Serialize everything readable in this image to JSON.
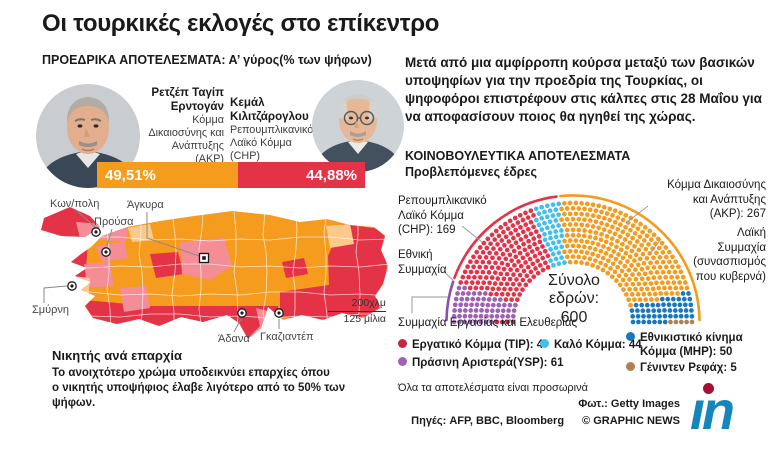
{
  "header": {
    "title": "Οι τουρκικές εκλογές στο επίκεντρο"
  },
  "presidential": {
    "heading": "ΠΡΟΕΔΡΙΚΑ ΑΠΟΤΕΛΕΣΜΑΤΑ: Α’ γύρος(% των ψήφων)",
    "candidates": [
      {
        "name": "Ρετζέπ Ταγίπ\nΕρντογάν",
        "party": "Κόμμα\nΔικαιοσύνης και\nΑνάπτυξης\n(ΑΚΡ)"
      },
      {
        "name": "Κεμάλ\nΚιλιτζάρογλου",
        "party": "Ρεπουμπλικανικό\nΛαϊκό Κόμμα\n(CHP)"
      }
    ]
  },
  "intro": "Μετά από μια αμφίρροπη κούρσα μεταξύ των βασικών υποψηφίων για την προεδρία της Τουρκίας, οι ψηφοφόροι επιστρέφουν στις κάλπες στις 28 Μαΐου για να αποφασίσουν ποιος θα ηγηθεί της χώρας.",
  "map": {
    "cities": [
      {
        "name": "Κων/πολη"
      },
      {
        "name": "Προύσα"
      },
      {
        "name": "Άγκυρα"
      },
      {
        "name": "Σμύρνη"
      },
      {
        "name": "Άδανα"
      },
      {
        "name": "Γκαζιαντέπ"
      }
    ],
    "scale_top": "200χλμ",
    "scale_bottom": "125 μίλια",
    "caption_title": "Νικητής ανά επαρχία",
    "caption_note": "Το ανοιχτότερο χρώμα υποδεικνύει επαρχίες όπου\nο νικητής υποψήφιος έλαβε λιγότερο από το 50% των ψήφων."
  },
  "chart_data": [
    {
      "type": "bar",
      "title": "ΠΡΟΕΔΡΙΚΑ ΑΠΟΤΕΛΕΣΜΑΤΑ: Α’ γύρος (% των ψήφων)",
      "categories": [
        "Ρετζέπ Ταγίπ Ερντογάν (ΑΚΡ)",
        "Κεμάλ Κιλιτζάρογλου (CHP)"
      ],
      "values": [
        49.51,
        44.88
      ],
      "value_labels": [
        "49,51%",
        "44,88%"
      ],
      "colors": [
        "#f59b1e",
        "#e43347"
      ]
    },
    {
      "type": "parliament",
      "title": "ΚΟΙΝΟΒΟΥΛΕΥΤΙΚΑ ΑΠΟΤΕΛΕΣΜΑΤΑ",
      "subtitle": "Προβλεπόμενες έδρες",
      "total_seats": 600,
      "total_label": "Σύνολο\nεδρών:\n600",
      "parties": [
        {
          "name": "Εργατικό Κόμμα (ΤΙΡ)",
          "seats": 4,
          "color": "#c9253c"
        },
        {
          "name": "Πράσινη Αριστερά (YSP)",
          "seats": 61,
          "color": "#9d62b4"
        },
        {
          "name": "Ρεπουμπλικανικό Λαϊκό Κόμμα (CHP)",
          "seats": 169,
          "color": "#e43347"
        },
        {
          "name": "Καλό Κόμμα",
          "seats": 44,
          "color": "#41bfee"
        },
        {
          "name": "Κόμμα Δικαιοσύνης και Ανάπτυξης (ΑΚΡ)",
          "seats": 267,
          "color": "#f59b1e"
        },
        {
          "name": "Εθνικιστικό κίνημα Κόμμα (MHP)",
          "seats": 50,
          "color": "#1878bf"
        },
        {
          "name": "Γένιντεν Ρεφάχ",
          "seats": 5,
          "color": "#b08050"
        }
      ],
      "alliances": [
        {
          "name": "Συμμαχία Εργασίας και Ελευθερίας",
          "seats": 65,
          "color": "#8c4fae"
        },
        {
          "name": "Εθνική Συμμαχία",
          "seats": 213,
          "color": "#e43347"
        },
        {
          "name": "Λαϊκή Συμμαχία (συνασπισμός που κυβερνά)",
          "seats": 322,
          "color": "#f59b1e"
        }
      ],
      "labels": {
        "chp": "Ρεπουμπλικανικό\nΛαϊκό Κόμμα\n(CHP): 169",
        "akp": "Κόμμα Δικαιοσύνης\nκαι Ανάπτυξης\n(ΑΚΡ): 267",
        "nation_alliance": "Εθνική\nΣυμμαχία",
        "people_alliance": "Λαϊκή\nΣυμμαχία\n(συνασπισμός\nπου κυβερνά)",
        "labour_alliance": "Συμμαχία Εργασίας και Ελευθερίας"
      },
      "legend": [
        {
          "label": "Εργατικό Κόμμα (ΤΙΡ): 4",
          "color": "#c9253c"
        },
        {
          "label": "Πράσινη Αριστερά(YSP): 61",
          "color": "#9d62b4"
        },
        {
          "label": "Καλό Κόμμα: 44",
          "color": "#41bfee"
        },
        {
          "label": "Εθνικιστικό κίνημα\nΚόμμα (MHP): 50",
          "color": "#1878bf"
        },
        {
          "label": "Γένιντεν Ρεφάχ: 5",
          "color": "#b08050"
        }
      ],
      "disclaimer": "Όλα τα αποτελέσματα είναι προσωρινά"
    }
  ],
  "footer": {
    "photo_credit": "Φωτ.: Getty Images",
    "sources": "Πηγές: AFP, BBC, Bloomberg",
    "copyright": "© GRAPHIC NEWS",
    "logo_text": "ın"
  },
  "colors": {
    "akp": "#f59b1e",
    "akp_light": "#fbc98b",
    "chp": "#e43347",
    "chp_light": "#f48d96",
    "logo_blue": "#1586bc",
    "logo_dot": "#a60f2d"
  }
}
